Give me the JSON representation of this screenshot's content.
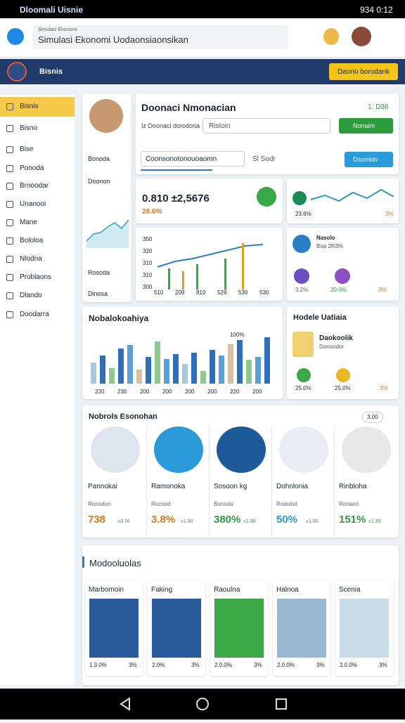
{
  "status_bar": {
    "title": "Dloomali Uisnie",
    "time": "934 0:12"
  },
  "browser": {
    "url_hint": "Simulasi Ekonomi",
    "url": "Simulasi Ekonomi Uodaonsiaonsikan"
  },
  "app_header": {
    "brand": "Bisnis",
    "button": "Daorio borodank"
  },
  "sidebar": {
    "items": [
      "Bisnis",
      "Bisno",
      "Bise",
      "Ponoda",
      "Brnoodar",
      "Unanooi",
      "Mane",
      "Bololoa",
      "Nlodna",
      "Problaons",
      "Dlando",
      "Doodarra"
    ]
  },
  "profile_panel": {
    "items": [
      "Bonoda",
      "Doonon",
      "Rosoda",
      "Dinosa"
    ]
  },
  "main_header": {
    "title": "Doonaci Nmonacian",
    "subtitle": "Iz Doonaci dorodoria",
    "search": "Ristoin",
    "badge": "1: D36",
    "button": "Nonaim",
    "input": "Coonsonotonouoaomn",
    "search2": "Sl Sodr",
    "button2": "Dsornidv"
  },
  "kpi": {
    "value": "0.810 ±2,5676",
    "change": "28.6%"
  },
  "trend_card": {
    "labels": [
      "23.6%",
      "3%"
    ]
  },
  "line_card": {
    "yticks": [
      "350",
      "320",
      "310",
      "310",
      "300"
    ],
    "xticks": [
      "510",
      "209",
      "810",
      "529",
      "530",
      "530"
    ]
  },
  "stats_card": {
    "title": "Nasolo",
    "subtitle": "Boa 2R3%",
    "items": [
      "3.2%",
      "20.0%",
      "3%"
    ]
  },
  "bar_card": {
    "title": "Nobalokoahiya",
    "label": "100%",
    "xticks": [
      "220",
      "230",
      "200",
      "200",
      "200",
      "200",
      "220",
      "200"
    ]
  },
  "people_card": {
    "title": "Hodele Uatiaia",
    "name": "Daokoolik",
    "sub": "Donoodor",
    "items": [
      "25.0%",
      "25.0%",
      "3%"
    ]
  },
  "economy": {
    "title": "Nobrols Esonohan",
    "badge": "3.00",
    "cards": [
      {
        "name": "Pannokai",
        "label": "Ronodon",
        "value": "738",
        "delta": "±3.76"
      },
      {
        "name": "Ramonoka",
        "label": "Rocood",
        "value": "3.8%",
        "delta": "±1.30"
      },
      {
        "name": "Sosoon kg",
        "label": "Bonoda",
        "value": "380%",
        "delta": "±1.36"
      },
      {
        "name": "Dohnlonia",
        "label": "Rodolod",
        "value": "50%",
        "delta": "±1.00"
      },
      {
        "name": "Rinbloha",
        "label": "Ronaeo",
        "value": "151%",
        "delta": "±1.35"
      }
    ]
  },
  "bottom": {
    "title": "Modooluolas",
    "cards": [
      {
        "name": "Marbomoin",
        "left": "1.3.0%",
        "right": "3%"
      },
      {
        "name": "Faking",
        "left": "2.0%",
        "right": "3%"
      },
      {
        "name": "Raoulna",
        "left": "2.0.0%",
        "right": "3%"
      },
      {
        "name": "Halnoa",
        "left": "2.0.0%",
        "right": "3%"
      },
      {
        "name": "Scenia",
        "left": "2.0.0%",
        "right": "3%"
      }
    ]
  }
}
